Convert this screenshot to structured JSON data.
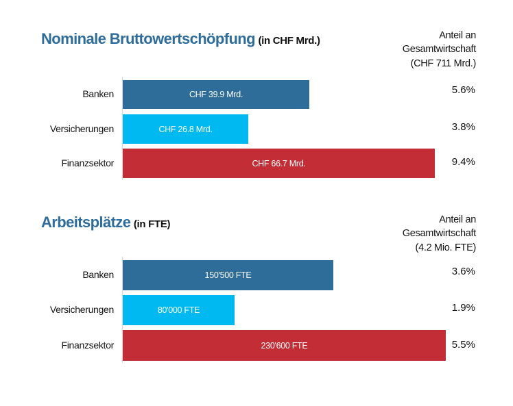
{
  "chart_data": [
    {
      "type": "bar",
      "orientation": "horizontal",
      "title": "Nominale Bruttowertschöpfung",
      "unit_label": "(in CHF Mrd.)",
      "share_header": [
        "Anteil an",
        "Gesamtwirtschaft",
        "(CHF 711 Mrd.)"
      ],
      "categories": [
        "Banken",
        "Versicherungen",
        "Finanzsektor"
      ],
      "values": [
        39.9,
        26.8,
        66.7
      ],
      "value_labels": [
        "CHF 39.9 Mrd.",
        "CHF 26.8 Mrd.",
        "CHF 66.7 Mrd."
      ],
      "shares": [
        "5.6%",
        "3.8%",
        "9.4%"
      ],
      "colors": [
        "#2e6c9a",
        "#00b9f1",
        "#c32d35"
      ],
      "xlim": [
        0,
        66.7
      ]
    },
    {
      "type": "bar",
      "orientation": "horizontal",
      "title": "Arbeitsplätze",
      "unit_label": "(in FTE)",
      "share_header": [
        "Anteil an",
        "Gesamtwirtschaft",
        "(4.2 Mio. FTE)"
      ],
      "categories": [
        "Banken",
        "Versicherungen",
        "Finanzsektor"
      ],
      "values": [
        150500,
        80000,
        230600
      ],
      "value_labels": [
        "150'500 FTE",
        "80'000 FTE",
        "230'600 FTE"
      ],
      "shares": [
        "3.6%",
        "1.9%",
        "5.5%"
      ],
      "colors": [
        "#2e6c9a",
        "#00b9f1",
        "#c32d35"
      ],
      "xlim": [
        0,
        230600
      ]
    }
  ]
}
